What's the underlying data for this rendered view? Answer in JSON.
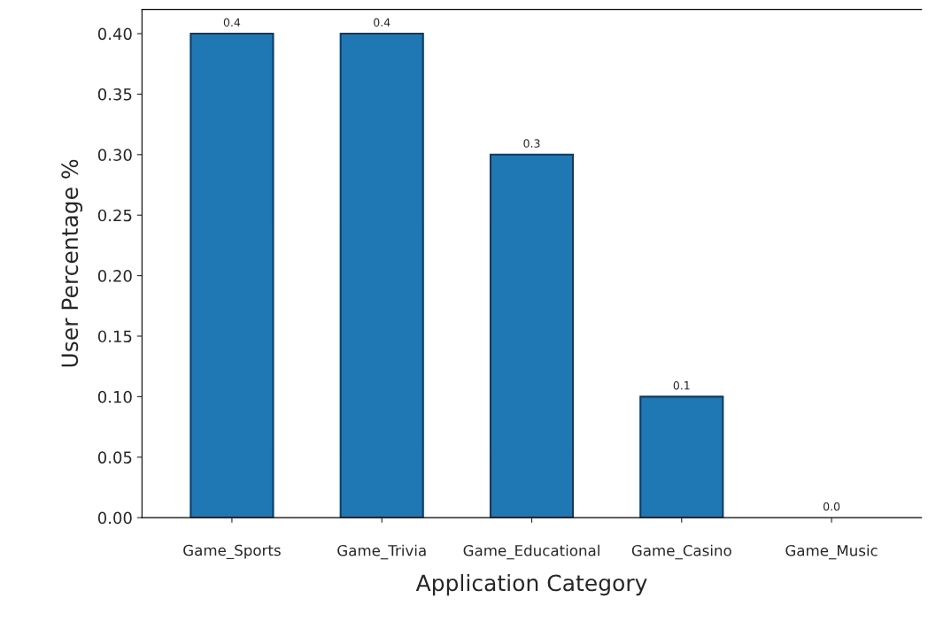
{
  "chart_data": {
    "type": "bar",
    "xlabel": "Application Category",
    "ylabel": "User Percentage %",
    "categories": [
      "Game_Sports",
      "Game_Trivia",
      "Game_Educational",
      "Game_Casino",
      "Game_Music"
    ],
    "values": [
      0.4,
      0.4,
      0.3,
      0.1,
      0.0
    ],
    "color": "#1f77b4",
    "value_labels": [
      "0.4",
      "0.4",
      "0.3",
      "0.1",
      "0.0"
    ],
    "grid": false,
    "legend": false,
    "ylim": [
      0,
      0.42
    ],
    "yticks": [
      {
        "value": 0,
        "label": "0.00"
      },
      {
        "value": 0.05,
        "label": "0.05"
      },
      {
        "value": 0.1,
        "label": "0.10"
      },
      {
        "value": 0.15,
        "label": "0.15"
      },
      {
        "value": 0.2,
        "label": "0.20"
      },
      {
        "value": 0.25,
        "label": "0.25"
      },
      {
        "value": 0.3,
        "label": "0.30"
      },
      {
        "value": 0.35,
        "label": "0.35"
      },
      {
        "value": 0.4,
        "label": "0.40"
      }
    ]
  }
}
